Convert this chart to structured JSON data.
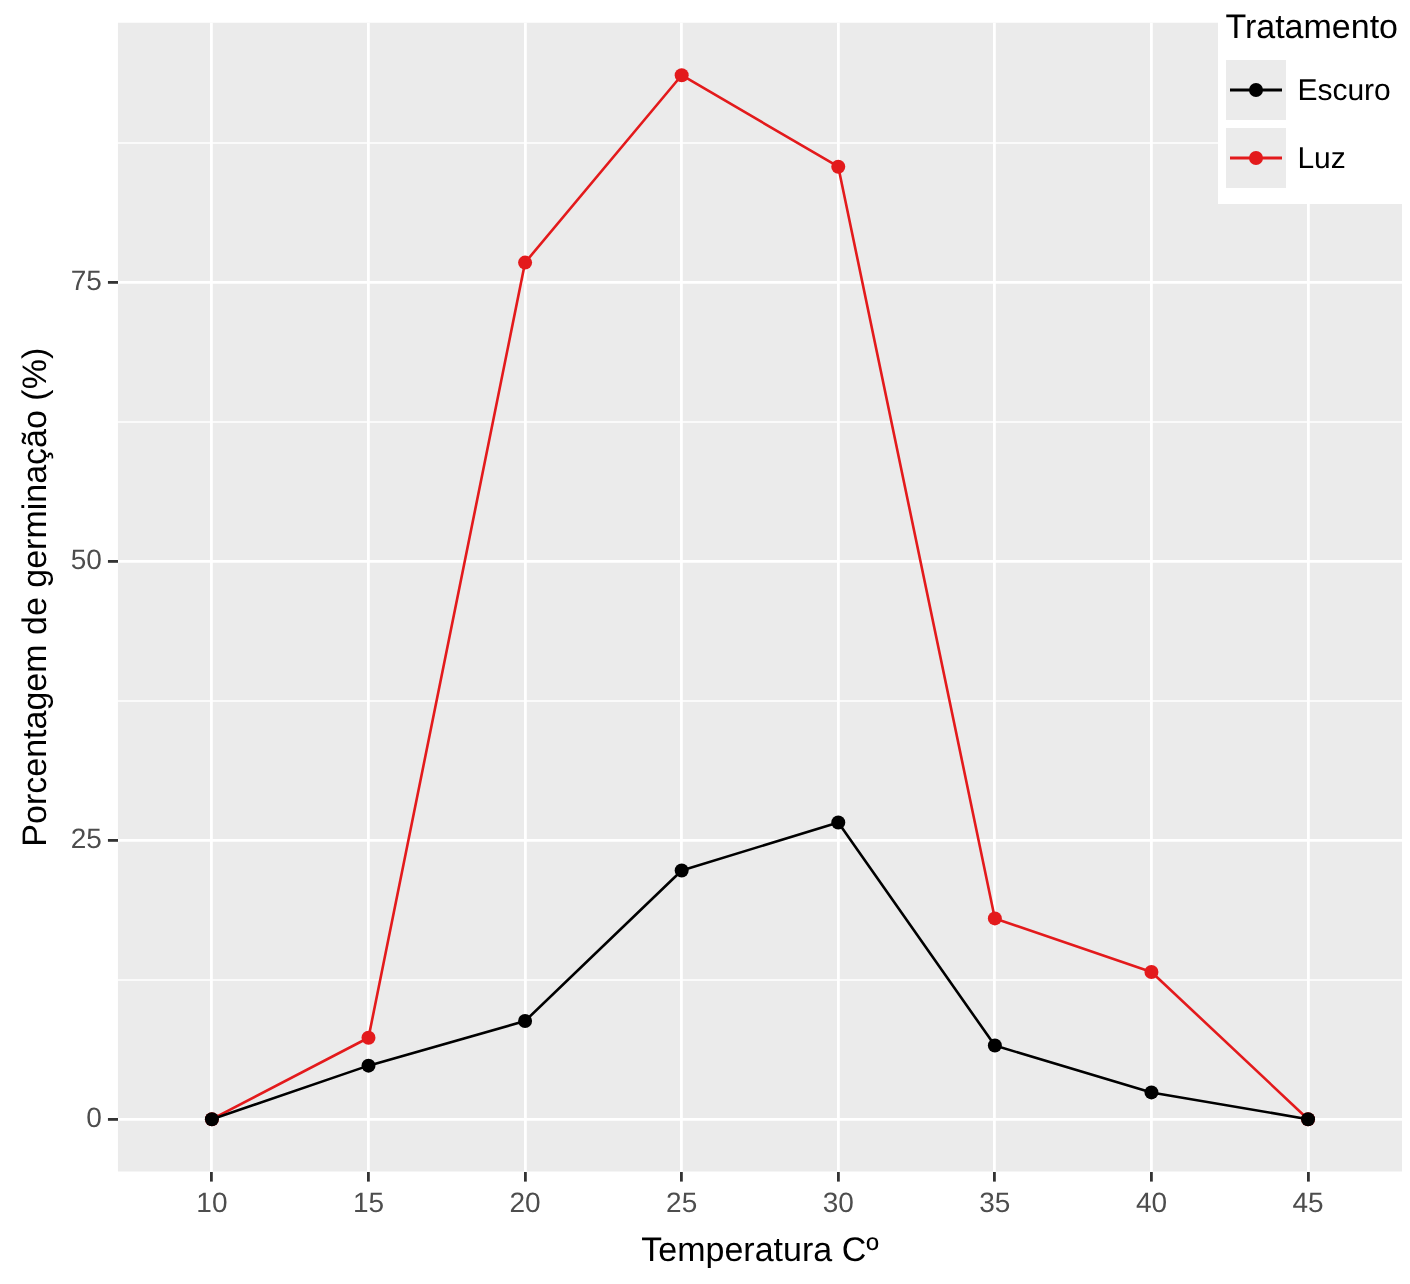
{
  "chart_data": {
    "type": "line",
    "xlabel": "Temperatura Cº",
    "ylabel": "Porcentagem de germinação (%)",
    "legend_title": "Tratamento",
    "x": [
      10,
      15,
      20,
      25,
      30,
      35,
      40,
      45
    ],
    "series": [
      {
        "name": "Escuro",
        "color": "#000000",
        "values": [
          0,
          4.8,
          8.8,
          22.3,
          26.6,
          6.6,
          2.4,
          0
        ]
      },
      {
        "name": "Luz",
        "color": "#e31a1c",
        "values": [
          0,
          7.3,
          76.8,
          93.6,
          85.4,
          18.0,
          13.2,
          0
        ]
      }
    ],
    "xlim": [
      7,
      48
    ],
    "xticks": [
      10,
      15,
      20,
      25,
      30,
      35,
      40,
      45
    ],
    "ylim": [
      -4.7,
      98.3
    ],
    "yticks": [
      0,
      {
        "value": 12.5,
        "label": null
      },
      25,
      {
        "value": 37.5,
        "label": null
      },
      50,
      {
        "value": 62.5,
        "label": null
      },
      75,
      {
        "value": 87.5,
        "label": null
      }
    ],
    "grid": true,
    "legend": "top right",
    "marker": "circle",
    "line_style": "solid"
  }
}
